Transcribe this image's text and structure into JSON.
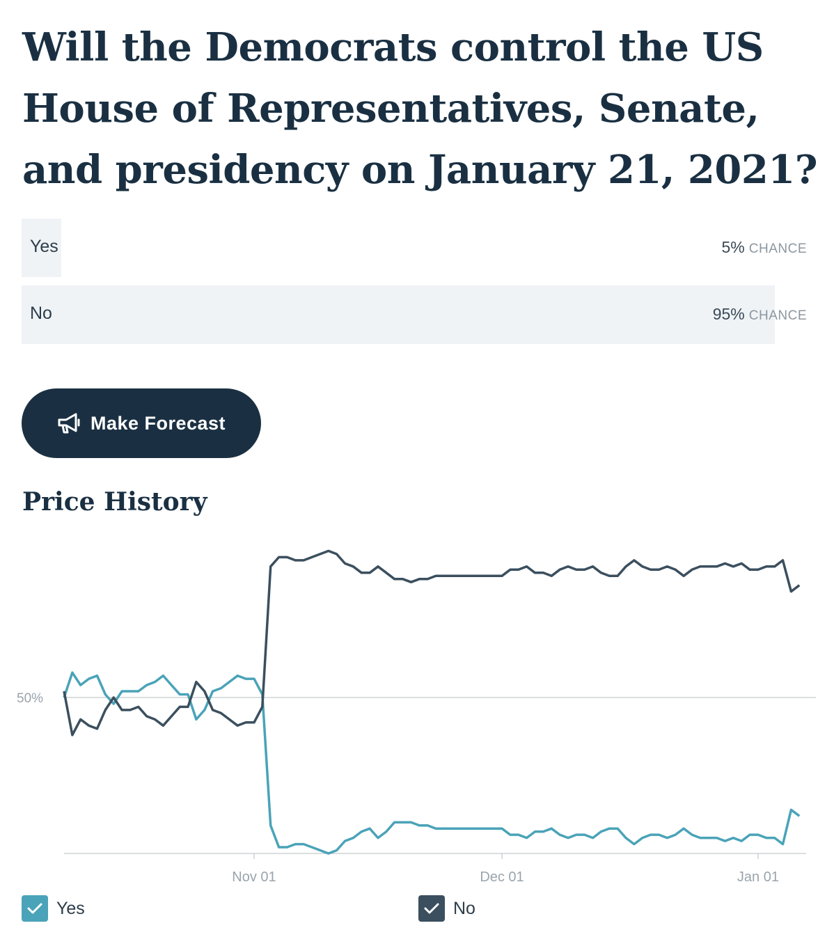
{
  "question": {
    "title": "Will the Democrats control the US House of Representatives, Senate, and presidency on January 21, 2021?"
  },
  "outcomes": [
    {
      "label": "Yes",
      "percent_text": "5%",
      "chance_text": "CHANCE",
      "value": 5
    },
    {
      "label": "No",
      "percent_text": "95%",
      "chance_text": "CHANCE",
      "value": 95
    }
  ],
  "actions": {
    "forecast_label": "Make Forecast",
    "forecast_icon": "megaphone-icon"
  },
  "price_history": {
    "title": "Price History"
  },
  "colors": {
    "navy": "#1a3042",
    "yes": "#4aa3b8",
    "no": "#3b4f5e",
    "bar_fill": "#eff3f6"
  },
  "chart_data": {
    "type": "line",
    "x_unit": "date",
    "xlim": [
      "2020-10-09",
      "2021-01-08"
    ],
    "ylim": [
      0,
      100
    ],
    "y_ref_line": 50,
    "y_ref_label": "50%",
    "x_ticks": [
      {
        "date": "2020-11-01",
        "label": "Nov 01"
      },
      {
        "date": "2020-12-01",
        "label": "Dec 01"
      },
      {
        "date": "2021-01-01",
        "label": "Jan 01"
      }
    ],
    "legend_position": "bottom",
    "series": [
      {
        "name": "Yes",
        "points": [
          [
            "2020-10-09",
            50
          ],
          [
            "2020-10-10",
            58
          ],
          [
            "2020-10-11",
            54
          ],
          [
            "2020-10-12",
            56
          ],
          [
            "2020-10-13",
            57
          ],
          [
            "2020-10-14",
            51
          ],
          [
            "2020-10-15",
            48
          ],
          [
            "2020-10-16",
            52
          ],
          [
            "2020-10-17",
            52
          ],
          [
            "2020-10-18",
            52
          ],
          [
            "2020-10-19",
            54
          ],
          [
            "2020-10-20",
            55
          ],
          [
            "2020-10-21",
            57
          ],
          [
            "2020-10-22",
            54
          ],
          [
            "2020-10-23",
            51
          ],
          [
            "2020-10-24",
            51
          ],
          [
            "2020-10-25",
            43
          ],
          [
            "2020-10-26",
            46
          ],
          [
            "2020-10-27",
            52
          ],
          [
            "2020-10-28",
            53
          ],
          [
            "2020-10-29",
            55
          ],
          [
            "2020-10-30",
            57
          ],
          [
            "2020-10-31",
            56
          ],
          [
            "2020-11-01",
            56
          ],
          [
            "2020-11-02",
            51
          ],
          [
            "2020-11-03",
            9
          ],
          [
            "2020-11-04",
            2
          ],
          [
            "2020-11-05",
            2
          ],
          [
            "2020-11-06",
            3
          ],
          [
            "2020-11-07",
            3
          ],
          [
            "2020-11-08",
            2
          ],
          [
            "2020-11-09",
            1
          ],
          [
            "2020-11-10",
            0
          ],
          [
            "2020-11-11",
            1
          ],
          [
            "2020-11-12",
            4
          ],
          [
            "2020-11-13",
            5
          ],
          [
            "2020-11-14",
            7
          ],
          [
            "2020-11-15",
            8
          ],
          [
            "2020-11-16",
            5
          ],
          [
            "2020-11-17",
            7
          ],
          [
            "2020-11-18",
            10
          ],
          [
            "2020-11-19",
            10
          ],
          [
            "2020-11-20",
            10
          ],
          [
            "2020-11-21",
            9
          ],
          [
            "2020-11-22",
            9
          ],
          [
            "2020-11-23",
            8
          ],
          [
            "2020-11-24",
            8
          ],
          [
            "2020-11-25",
            8
          ],
          [
            "2020-11-26",
            8
          ],
          [
            "2020-11-27",
            8
          ],
          [
            "2020-11-28",
            8
          ],
          [
            "2020-11-29",
            8
          ],
          [
            "2020-11-30",
            8
          ],
          [
            "2020-12-01",
            8
          ],
          [
            "2020-12-02",
            6
          ],
          [
            "2020-12-03",
            6
          ],
          [
            "2020-12-04",
            5
          ],
          [
            "2020-12-05",
            7
          ],
          [
            "2020-12-06",
            7
          ],
          [
            "2020-12-07",
            8
          ],
          [
            "2020-12-08",
            6
          ],
          [
            "2020-12-09",
            5
          ],
          [
            "2020-12-10",
            6
          ],
          [
            "2020-12-11",
            6
          ],
          [
            "2020-12-12",
            5
          ],
          [
            "2020-12-13",
            7
          ],
          [
            "2020-12-14",
            8
          ],
          [
            "2020-12-15",
            8
          ],
          [
            "2020-12-16",
            5
          ],
          [
            "2020-12-17",
            3
          ],
          [
            "2020-12-18",
            5
          ],
          [
            "2020-12-19",
            6
          ],
          [
            "2020-12-20",
            6
          ],
          [
            "2020-12-21",
            5
          ],
          [
            "2020-12-22",
            6
          ],
          [
            "2020-12-23",
            8
          ],
          [
            "2020-12-24",
            6
          ],
          [
            "2020-12-25",
            5
          ],
          [
            "2020-12-26",
            5
          ],
          [
            "2020-12-27",
            5
          ],
          [
            "2020-12-28",
            4
          ],
          [
            "2020-12-29",
            5
          ],
          [
            "2020-12-30",
            4
          ],
          [
            "2020-12-31",
            6
          ],
          [
            "2021-01-01",
            6
          ],
          [
            "2021-01-02",
            5
          ],
          [
            "2021-01-03",
            5
          ],
          [
            "2021-01-04",
            3
          ],
          [
            "2021-01-05",
            14
          ],
          [
            "2021-01-06",
            12
          ]
        ]
      },
      {
        "name": "No",
        "points": [
          [
            "2020-10-09",
            52
          ],
          [
            "2020-10-10",
            38
          ],
          [
            "2020-10-11",
            43
          ],
          [
            "2020-10-12",
            41
          ],
          [
            "2020-10-13",
            40
          ],
          [
            "2020-10-14",
            46
          ],
          [
            "2020-10-15",
            50
          ],
          [
            "2020-10-16",
            46
          ],
          [
            "2020-10-17",
            46
          ],
          [
            "2020-10-18",
            47
          ],
          [
            "2020-10-19",
            44
          ],
          [
            "2020-10-20",
            43
          ],
          [
            "2020-10-21",
            41
          ],
          [
            "2020-10-22",
            44
          ],
          [
            "2020-10-23",
            47
          ],
          [
            "2020-10-24",
            47
          ],
          [
            "2020-10-25",
            55
          ],
          [
            "2020-10-26",
            52
          ],
          [
            "2020-10-27",
            46
          ],
          [
            "2020-10-28",
            45
          ],
          [
            "2020-10-29",
            43
          ],
          [
            "2020-10-30",
            41
          ],
          [
            "2020-10-31",
            42
          ],
          [
            "2020-11-01",
            42
          ],
          [
            "2020-11-02",
            47
          ],
          [
            "2020-11-03",
            92
          ],
          [
            "2020-11-04",
            95
          ],
          [
            "2020-11-05",
            95
          ],
          [
            "2020-11-06",
            94
          ],
          [
            "2020-11-07",
            94
          ],
          [
            "2020-11-08",
            95
          ],
          [
            "2020-11-09",
            96
          ],
          [
            "2020-11-10",
            97
          ],
          [
            "2020-11-11",
            96
          ],
          [
            "2020-11-12",
            93
          ],
          [
            "2020-11-13",
            92
          ],
          [
            "2020-11-14",
            90
          ],
          [
            "2020-11-15",
            90
          ],
          [
            "2020-11-16",
            92
          ],
          [
            "2020-11-17",
            90
          ],
          [
            "2020-11-18",
            88
          ],
          [
            "2020-11-19",
            88
          ],
          [
            "2020-11-20",
            87
          ],
          [
            "2020-11-21",
            88
          ],
          [
            "2020-11-22",
            88
          ],
          [
            "2020-11-23",
            89
          ],
          [
            "2020-11-24",
            89
          ],
          [
            "2020-11-25",
            89
          ],
          [
            "2020-11-26",
            89
          ],
          [
            "2020-11-27",
            89
          ],
          [
            "2020-11-28",
            89
          ],
          [
            "2020-11-29",
            89
          ],
          [
            "2020-11-30",
            89
          ],
          [
            "2020-12-01",
            89
          ],
          [
            "2020-12-02",
            91
          ],
          [
            "2020-12-03",
            91
          ],
          [
            "2020-12-04",
            92
          ],
          [
            "2020-12-05",
            90
          ],
          [
            "2020-12-06",
            90
          ],
          [
            "2020-12-07",
            89
          ],
          [
            "2020-12-08",
            91
          ],
          [
            "2020-12-09",
            92
          ],
          [
            "2020-12-10",
            91
          ],
          [
            "2020-12-11",
            91
          ],
          [
            "2020-12-12",
            92
          ],
          [
            "2020-12-13",
            90
          ],
          [
            "2020-12-14",
            89
          ],
          [
            "2020-12-15",
            89
          ],
          [
            "2020-12-16",
            92
          ],
          [
            "2020-12-17",
            94
          ],
          [
            "2020-12-18",
            92
          ],
          [
            "2020-12-19",
            91
          ],
          [
            "2020-12-20",
            91
          ],
          [
            "2020-12-21",
            92
          ],
          [
            "2020-12-22",
            91
          ],
          [
            "2020-12-23",
            89
          ],
          [
            "2020-12-24",
            91
          ],
          [
            "2020-12-25",
            92
          ],
          [
            "2020-12-26",
            92
          ],
          [
            "2020-12-27",
            92
          ],
          [
            "2020-12-28",
            93
          ],
          [
            "2020-12-29",
            92
          ],
          [
            "2020-12-30",
            93
          ],
          [
            "2020-12-31",
            91
          ],
          [
            "2021-01-01",
            91
          ],
          [
            "2021-01-02",
            92
          ],
          [
            "2021-01-03",
            92
          ],
          [
            "2021-01-04",
            94
          ],
          [
            "2021-01-05",
            84
          ],
          [
            "2021-01-06",
            86
          ]
        ]
      }
    ]
  }
}
